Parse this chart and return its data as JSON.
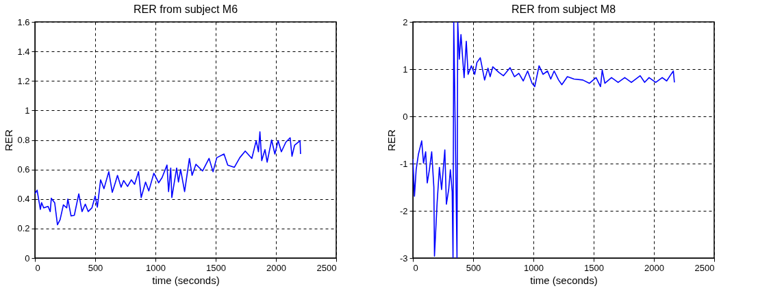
{
  "chart_data": [
    {
      "type": "line",
      "title": "RER from subject M6",
      "xlabel": "time (seconds)",
      "ylabel": "RER",
      "grid": true,
      "line_style": "solid",
      "marker": "none",
      "xlim": [
        0,
        2500
      ],
      "xticks": [
        0,
        500,
        1000,
        1500,
        2000,
        2500
      ],
      "ylim": [
        0,
        1.6
      ],
      "yticks": [
        0,
        0.2,
        0.4,
        0.6,
        0.8,
        1,
        1.2,
        1.4,
        1.6
      ],
      "x": [
        0,
        18,
        45,
        55,
        73,
        109,
        127,
        136,
        164,
        187,
        209,
        236,
        264,
        273,
        300,
        327,
        364,
        391,
        418,
        442,
        473,
        500,
        518,
        545,
        573,
        613,
        642,
        667,
        685,
        715,
        736,
        769,
        800,
        827,
        860,
        882,
        918,
        945,
        987,
        1027,
        1055,
        1096,
        1109,
        1127,
        1136,
        1176,
        1191,
        1209,
        1242,
        1282,
        1304,
        1336,
        1391,
        1445,
        1478,
        1509,
        1569,
        1600,
        1655,
        1700,
        1745,
        1800,
        1836,
        1855,
        1867,
        1882,
        1909,
        1927,
        1964,
        1991,
        2018,
        2045,
        2082,
        2118,
        2133,
        2155,
        2200,
        2204
      ],
      "series": [
        {
          "color": "#0000ff",
          "values": [
            0.435,
            0.46,
            0.33,
            0.375,
            0.34,
            0.35,
            0.315,
            0.405,
            0.375,
            0.225,
            0.26,
            0.36,
            0.34,
            0.4,
            0.285,
            0.29,
            0.435,
            0.315,
            0.365,
            0.315,
            0.34,
            0.42,
            0.345,
            0.53,
            0.47,
            0.585,
            0.445,
            0.51,
            0.56,
            0.48,
            0.525,
            0.485,
            0.53,
            0.5,
            0.585,
            0.41,
            0.515,
            0.455,
            0.575,
            0.51,
            0.545,
            0.63,
            0.45,
            0.61,
            0.41,
            0.61,
            0.515,
            0.6,
            0.45,
            0.675,
            0.56,
            0.635,
            0.59,
            0.675,
            0.585,
            0.68,
            0.705,
            0.63,
            0.615,
            0.68,
            0.725,
            0.675,
            0.795,
            0.72,
            0.855,
            0.66,
            0.735,
            0.65,
            0.8,
            0.705,
            0.795,
            0.72,
            0.785,
            0.815,
            0.69,
            0.765,
            0.795,
            0.705
          ]
        }
      ]
    },
    {
      "type": "line",
      "title": "RER from subject M8",
      "xlabel": "time (seconds)",
      "ylabel": "RER",
      "grid": true,
      "line_style": "solid",
      "marker": "none",
      "xlim": [
        0,
        2500
      ],
      "xticks": [
        0,
        500,
        1000,
        1500,
        2000,
        2500
      ],
      "ylim": [
        -3,
        2
      ],
      "yticks": [
        -3,
        -2,
        -1,
        0,
        1,
        2
      ],
      "x": [
        0,
        13,
        27,
        46,
        73,
        88,
        106,
        119,
        137,
        156,
        174,
        179,
        201,
        220,
        238,
        265,
        278,
        297,
        311,
        326,
        333,
        339,
        366,
        372,
        385,
        399,
        412,
        425,
        443,
        458,
        485,
        513,
        531,
        559,
        595,
        623,
        641,
        663,
        714,
        751,
        806,
        843,
        879,
        916,
        952,
        989,
        1011,
        1047,
        1080,
        1117,
        1144,
        1172,
        1209,
        1236,
        1282,
        1337,
        1410,
        1465,
        1520,
        1557,
        1571,
        1593,
        1648,
        1703,
        1758,
        1813,
        1886,
        1923,
        1960,
        2015,
        2069,
        2106,
        2134,
        2161,
        2170
      ],
      "series": [
        {
          "color": "#0000ff",
          "values": [
            -0.9,
            -1.69,
            -1.13,
            -0.8,
            -0.52,
            -0.99,
            -0.75,
            -1.41,
            -1.13,
            -0.75,
            -1.5,
            -2.96,
            -1.83,
            -1.08,
            -1.55,
            -0.71,
            -1.86,
            -1.55,
            -1.13,
            -1.6,
            -3,
            2,
            -3,
            2,
            1.21,
            1.73,
            1.26,
            0.82,
            1.59,
            0.89,
            1.07,
            0.89,
            1.14,
            1.24,
            0.77,
            1.02,
            0.84,
            1.05,
            0.93,
            0.86,
            1.03,
            0.84,
            0.91,
            0.75,
            0.96,
            0.7,
            0.63,
            1.07,
            0.89,
            0.96,
            0.79,
            0.96,
            0.77,
            0.67,
            0.84,
            0.79,
            0.77,
            0.7,
            0.82,
            0.63,
            0.98,
            0.7,
            0.82,
            0.72,
            0.82,
            0.72,
            0.86,
            0.72,
            0.82,
            0.72,
            0.82,
            0.75,
            0.86,
            0.96,
            0.72
          ]
        }
      ]
    }
  ]
}
